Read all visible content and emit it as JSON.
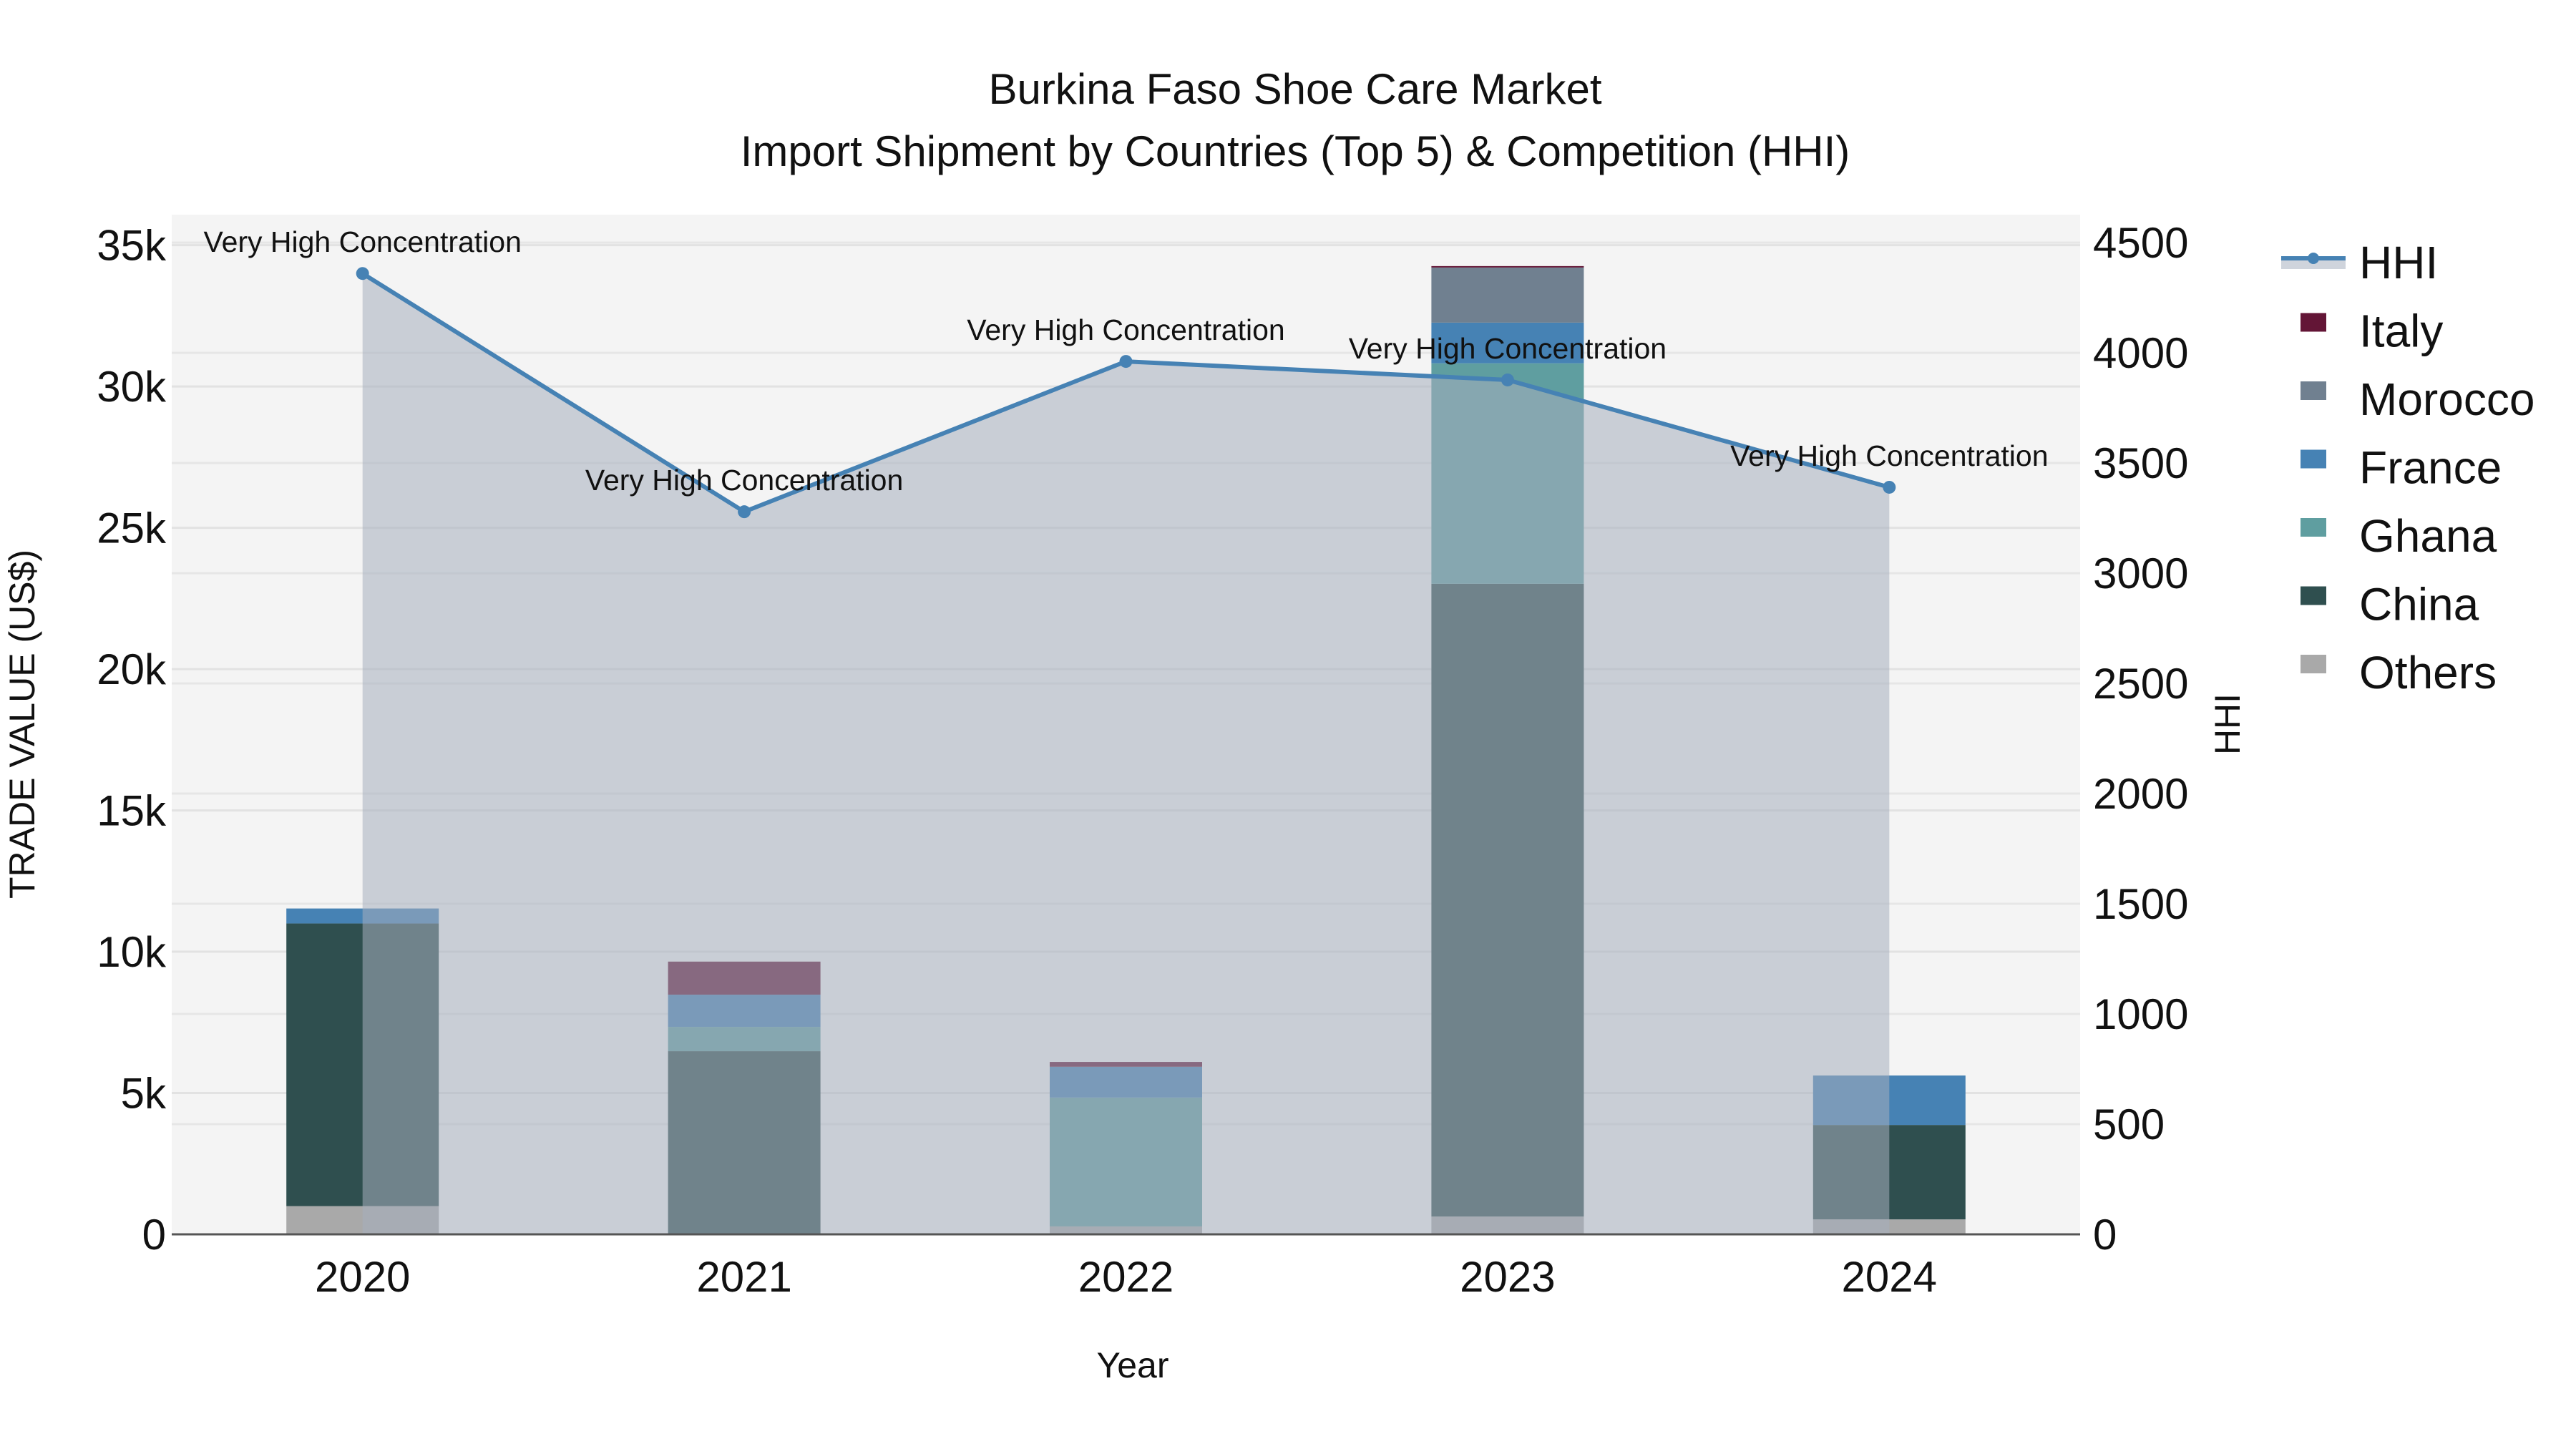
{
  "title": {
    "line1": "Burkina Faso Shoe Care Market",
    "line2": "Import Shipment by Countries (Top 5) & Competition (HHI)"
  },
  "axes": {
    "x_title": "Year",
    "y_left_title": "TRADE VALUE (US$)",
    "y_right_title": "HHI",
    "y_left_ticks": [
      "0",
      "5k",
      "10k",
      "15k",
      "20k",
      "25k",
      "30k",
      "35k"
    ],
    "y_right_ticks": [
      "0",
      "500",
      "1000",
      "1500",
      "2000",
      "2500",
      "3000",
      "3500",
      "4000",
      "4500"
    ]
  },
  "legend": {
    "items": [
      {
        "label": "HHI",
        "type": "line",
        "color": "#4682B4"
      },
      {
        "label": "Italy",
        "type": "box",
        "color": "#631536"
      },
      {
        "label": "Morocco",
        "type": "box",
        "color": "#708090"
      },
      {
        "label": "France",
        "type": "box",
        "color": "#4682B4"
      },
      {
        "label": "Ghana",
        "type": "box",
        "color": "#5F9EA0"
      },
      {
        "label": "China",
        "type": "box",
        "color": "#2F4F4F"
      },
      {
        "label": "Others",
        "type": "box",
        "color": "#A9A9A9"
      }
    ]
  },
  "annotations": [
    "Very High Concentration",
    "Very High Concentration",
    "Very High Concentration",
    "Very High Concentration",
    "Very High Concentration"
  ],
  "chart_data": {
    "type": "bar",
    "subtype": "stacked bar with line+area overlay (dual axis)",
    "title": "Burkina Faso Shoe Care Market — Import Shipment by Countries (Top 5) & Competition (HHI)",
    "xlabel": "Year",
    "ylabel": "TRADE VALUE (US$)",
    "y2label": "HHI",
    "categories": [
      "2020",
      "2021",
      "2022",
      "2023",
      "2024"
    ],
    "ylim": [
      0,
      36080
    ],
    "y2lim": [
      0,
      4627
    ],
    "grid": true,
    "legend_position": "right",
    "series": [
      {
        "name": "Others",
        "color": "#A9A9A9",
        "values": [
          1000,
          0,
          280,
          630,
          530
        ]
      },
      {
        "name": "China",
        "color": "#2F4F4F",
        "values": [
          10000,
          6480,
          0,
          22390,
          3340
        ]
      },
      {
        "name": "Ghana",
        "color": "#5F9EA0",
        "values": [
          0,
          860,
          4560,
          7800,
          0
        ]
      },
      {
        "name": "France",
        "color": "#4682B4",
        "values": [
          530,
          1140,
          1090,
          1440,
          1750
        ]
      },
      {
        "name": "Morocco",
        "color": "#708090",
        "values": [
          0,
          0,
          0,
          1950,
          0
        ]
      },
      {
        "name": "Italy",
        "color": "#631536",
        "values": [
          0,
          1170,
          170,
          50,
          0
        ]
      }
    ],
    "line_series": {
      "name": "HHI",
      "axis": "right",
      "color": "#4682B4",
      "fill": "rgba(160,170,185,0.5)",
      "values": [
        4360,
        3279,
        3961,
        3877,
        3390
      ],
      "labels": [
        "Very High Concentration",
        "Very High Concentration",
        "Very High Concentration",
        "Very High Concentration",
        "Very High Concentration"
      ]
    },
    "totals": [
      11530,
      9650,
      6100,
      34260,
      5620
    ]
  }
}
